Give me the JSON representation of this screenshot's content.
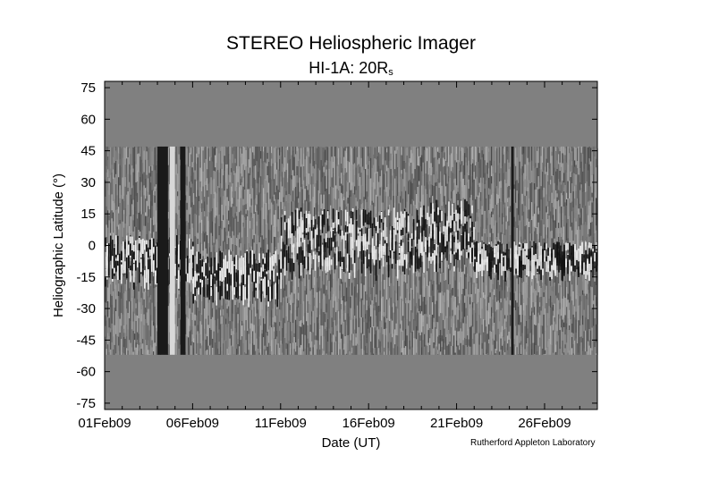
{
  "chart_data": {
    "type": "heatmap",
    "title": "STEREO Heliospheric Imager",
    "subtitle_main": "HI-1A: 20R",
    "subtitle_subscript": "s",
    "xlabel": "Date (UT)",
    "ylabel": "Heliographic Latitude (°)",
    "x_tick_labels": [
      "01Feb09",
      "06Feb09",
      "11Feb09",
      "16Feb09",
      "21Feb09",
      "26Feb09"
    ],
    "x_tick_days": [
      1,
      6,
      11,
      16,
      21,
      26
    ],
    "xlim_days": [
      1,
      29
    ],
    "y_ticks": [
      75,
      60,
      45,
      30,
      15,
      0,
      -15,
      -30,
      -45,
      -60,
      -75
    ],
    "ylim": [
      -78,
      78
    ],
    "data_coverage_latitude": {
      "top": 47,
      "bottom": -52
    },
    "no_data_color": "#808080",
    "grid": false,
    "credit": "Rutherford Appleton Laboratory"
  }
}
